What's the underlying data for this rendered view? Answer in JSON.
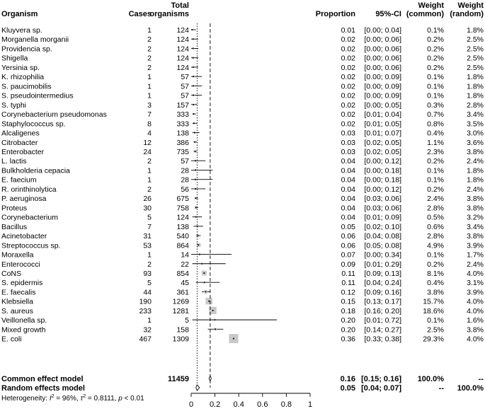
{
  "chart_data": {
    "type": "forest",
    "headers": {
      "organism": "Organism",
      "cases": "Cases",
      "total_line1": "Total",
      "total_line2": "organisms",
      "proportion": "Proportion",
      "ci": "95%-CI",
      "weight_common_line1": "Weight",
      "weight_common_line2": "(common)",
      "weight_random_line1": "Weight",
      "weight_random_line2": "(random)"
    },
    "studies": [
      {
        "organism": "Kluyvera sp.",
        "cases": "1",
        "total": "124",
        "proportion": "0.01",
        "ci": "[0.00; 0.04]",
        "w_common": "0.1%",
        "w_random": "1.8%",
        "est": 0.008,
        "lo": 0.0,
        "hi": 0.04
      },
      {
        "organism": "Morganella morganii",
        "cases": "2",
        "total": "124",
        "proportion": "0.02",
        "ci": "[0.00; 0.06]",
        "w_common": "0.2%",
        "w_random": "2.5%",
        "est": 0.016,
        "lo": 0.0,
        "hi": 0.06
      },
      {
        "organism": "Providencia sp.",
        "cases": "2",
        "total": "124",
        "proportion": "0.02",
        "ci": "[0.00; 0.06]",
        "w_common": "0.2%",
        "w_random": "2.5%",
        "est": 0.016,
        "lo": 0.0,
        "hi": 0.06
      },
      {
        "organism": "Shigella",
        "cases": "2",
        "total": "124",
        "proportion": "0.02",
        "ci": "[0.00; 0.06]",
        "w_common": "0.2%",
        "w_random": "2.5%",
        "est": 0.016,
        "lo": 0.0,
        "hi": 0.06
      },
      {
        "organism": "Yersinia sp.",
        "cases": "2",
        "total": "124",
        "proportion": "0.02",
        "ci": "[0.00; 0.06]",
        "w_common": "0.2%",
        "w_random": "2.5%",
        "est": 0.016,
        "lo": 0.0,
        "hi": 0.06
      },
      {
        "organism": "K. rhizophilia",
        "cases": "1",
        "total": "57",
        "proportion": "0.02",
        "ci": "[0.00; 0.09]",
        "w_common": "0.1%",
        "w_random": "1.8%",
        "est": 0.018,
        "lo": 0.0,
        "hi": 0.09
      },
      {
        "organism": "S. paucimobilis",
        "cases": "1",
        "total": "57",
        "proportion": "0.02",
        "ci": "[0.00; 0.09]",
        "w_common": "0.1%",
        "w_random": "1.8%",
        "est": 0.018,
        "lo": 0.0,
        "hi": 0.09
      },
      {
        "organism": "S. pseudointermedius",
        "cases": "1",
        "total": "57",
        "proportion": "0.02",
        "ci": "[0.00; 0.09]",
        "w_common": "0.1%",
        "w_random": "1.8%",
        "est": 0.018,
        "lo": 0.0,
        "hi": 0.09
      },
      {
        "organism": "S. typhi",
        "cases": "3",
        "total": "157",
        "proportion": "0.02",
        "ci": "[0.00; 0.05]",
        "w_common": "0.3%",
        "w_random": "2.8%",
        "est": 0.019,
        "lo": 0.0,
        "hi": 0.05
      },
      {
        "organism": "Corynebacterium pseudomonas",
        "cases": "7",
        "total": "333",
        "proportion": "0.02",
        "ci": "[0.01; 0.04]",
        "w_common": "0.7%",
        "w_random": "3.4%",
        "est": 0.021,
        "lo": 0.01,
        "hi": 0.04
      },
      {
        "organism": "Staphylococcus sp.",
        "cases": "8",
        "total": "333",
        "proportion": "0.02",
        "ci": "[0.01; 0.05]",
        "w_common": "0.8%",
        "w_random": "3.5%",
        "est": 0.024,
        "lo": 0.01,
        "hi": 0.05
      },
      {
        "organism": "Alcaligenes",
        "cases": "4",
        "total": "138",
        "proportion": "0.03",
        "ci": "[0.01; 0.07]",
        "w_common": "0.4%",
        "w_random": "3.0%",
        "est": 0.029,
        "lo": 0.01,
        "hi": 0.07
      },
      {
        "organism": "Citrobacter",
        "cases": "12",
        "total": "386",
        "proportion": "0.03",
        "ci": "[0.02; 0.05]",
        "w_common": "1.1%",
        "w_random": "3.6%",
        "est": 0.031,
        "lo": 0.02,
        "hi": 0.05
      },
      {
        "organism": "Enterobacter",
        "cases": "24",
        "total": "735",
        "proportion": "0.03",
        "ci": "[0.02; 0.05]",
        "w_common": "2.3%",
        "w_random": "3.8%",
        "est": 0.033,
        "lo": 0.02,
        "hi": 0.05
      },
      {
        "organism": "L. lactis",
        "cases": "2",
        "total": "57",
        "proportion": "0.04",
        "ci": "[0.00; 0.12]",
        "w_common": "0.2%",
        "w_random": "2.4%",
        "est": 0.035,
        "lo": 0.0,
        "hi": 0.12
      },
      {
        "organism": "Bulkholderia cepacia",
        "cases": "1",
        "total": "28",
        "proportion": "0.04",
        "ci": "[0.00; 0.18]",
        "w_common": "0.1%",
        "w_random": "1.8%",
        "est": 0.036,
        "lo": 0.0,
        "hi": 0.18
      },
      {
        "organism": "E. faecium",
        "cases": "1",
        "total": "28",
        "proportion": "0.04",
        "ci": "[0.00; 0.18]",
        "w_common": "0.1%",
        "w_random": "1.8%",
        "est": 0.036,
        "lo": 0.0,
        "hi": 0.18
      },
      {
        "organism": "R. orinthinolytica",
        "cases": "2",
        "total": "56",
        "proportion": "0.04",
        "ci": "[0.00; 0.12]",
        "w_common": "0.2%",
        "w_random": "2.4%",
        "est": 0.036,
        "lo": 0.0,
        "hi": 0.12
      },
      {
        "organism": "P. aeruginosa",
        "cases": "26",
        "total": "675",
        "proportion": "0.04",
        "ci": "[0.03; 0.06]",
        "w_common": "2.4%",
        "w_random": "3.8%",
        "est": 0.039,
        "lo": 0.03,
        "hi": 0.06
      },
      {
        "organism": "Proteus",
        "cases": "30",
        "total": "758",
        "proportion": "0.04",
        "ci": "[0.03; 0.06]",
        "w_common": "2.8%",
        "w_random": "3.8%",
        "est": 0.04,
        "lo": 0.03,
        "hi": 0.06
      },
      {
        "organism": "Corynebacterium",
        "cases": "5",
        "total": "124",
        "proportion": "0.04",
        "ci": "[0.01; 0.09]",
        "w_common": "0.5%",
        "w_random": "3.2%",
        "est": 0.04,
        "lo": 0.01,
        "hi": 0.09
      },
      {
        "organism": "Bacillus",
        "cases": "7",
        "total": "138",
        "proportion": "0.05",
        "ci": "[0.02; 0.10]",
        "w_common": "0.6%",
        "w_random": "3.4%",
        "est": 0.051,
        "lo": 0.02,
        "hi": 0.1
      },
      {
        "organism": "Acinetobacter",
        "cases": "31",
        "total": "540",
        "proportion": "0.06",
        "ci": "[0.04; 0.08]",
        "w_common": "2.8%",
        "w_random": "3.8%",
        "est": 0.057,
        "lo": 0.04,
        "hi": 0.08
      },
      {
        "organism": "Streptococcus sp.",
        "cases": "53",
        "total": "864",
        "proportion": "0.06",
        "ci": "[0.05; 0.08]",
        "w_common": "4.9%",
        "w_random": "3.9%",
        "est": 0.061,
        "lo": 0.05,
        "hi": 0.08
      },
      {
        "organism": "Moraxella",
        "cases": "1",
        "total": "14",
        "proportion": "0.07",
        "ci": "[0.00; 0.34]",
        "w_common": "0.1%",
        "w_random": "1.7%",
        "est": 0.071,
        "lo": 0.0,
        "hi": 0.34
      },
      {
        "organism": "Enterococci",
        "cases": "2",
        "total": "22",
        "proportion": "0.09",
        "ci": "[0.01; 0.29]",
        "w_common": "0.2%",
        "w_random": "2.4%",
        "est": 0.091,
        "lo": 0.01,
        "hi": 0.29
      },
      {
        "organism": "CoNS",
        "cases": "93",
        "total": "854",
        "proportion": "0.11",
        "ci": "[0.09; 0.13]",
        "w_common": "8.1%",
        "w_random": "4.0%",
        "est": 0.109,
        "lo": 0.09,
        "hi": 0.13
      },
      {
        "organism": "S. epidermis",
        "cases": "5",
        "total": "45",
        "proportion": "0.11",
        "ci": "[0.04; 0.24]",
        "w_common": "0.4%",
        "w_random": "3.1%",
        "est": 0.111,
        "lo": 0.04,
        "hi": 0.24
      },
      {
        "organism": "E. faecalis",
        "cases": "44",
        "total": "361",
        "proportion": "0.12",
        "ci": "[0.09; 0.16]",
        "w_common": "3.8%",
        "w_random": "3.9%",
        "est": 0.122,
        "lo": 0.09,
        "hi": 0.16
      },
      {
        "organism": "Klebsiella",
        "cases": "190",
        "total": "1269",
        "proportion": "0.15",
        "ci": "[0.13; 0.17]",
        "w_common": "15.7%",
        "w_random": "4.0%",
        "est": 0.15,
        "lo": 0.13,
        "hi": 0.17
      },
      {
        "organism": "S. aureus",
        "cases": "233",
        "total": "1281",
        "proportion": "0.18",
        "ci": "[0.16; 0.20]",
        "w_common": "18.6%",
        "w_random": "4.0%",
        "est": 0.182,
        "lo": 0.16,
        "hi": 0.2
      },
      {
        "organism": "Veillonella sp.",
        "cases": "1",
        "total": "5",
        "proportion": "0.20",
        "ci": "[0.01; 0.72]",
        "w_common": "0.1%",
        "w_random": "1.6%",
        "est": 0.2,
        "lo": 0.01,
        "hi": 0.72
      },
      {
        "organism": "Mixed growth",
        "cases": "32",
        "total": "158",
        "proportion": "0.20",
        "ci": "[0.14; 0.27]",
        "w_common": "2.5%",
        "w_random": "3.8%",
        "est": 0.203,
        "lo": 0.14,
        "hi": 0.27
      },
      {
        "organism": "E. coli",
        "cases": "467",
        "total": "1309",
        "proportion": "0.36",
        "ci": "[0.33; 0.38]",
        "w_common": "29.3%",
        "w_random": "4.0%",
        "est": 0.357,
        "lo": 0.33,
        "hi": 0.38
      }
    ],
    "common": {
      "label": "Common effect model",
      "total": "11459",
      "proportion": "0.16",
      "ci": "[0.15; 0.16]",
      "w_common": "100.0%",
      "w_random": "--",
      "est": 0.16,
      "lo": 0.15,
      "hi": 0.16
    },
    "random": {
      "label": "Random effects model",
      "proportion": "0.05",
      "ci": "[0.04; 0.07]",
      "w_common": "--",
      "w_random": "100.0%",
      "est": 0.05,
      "lo": 0.04,
      "hi": 0.07
    },
    "heterogeneity": {
      "prefix": "Heterogeneity: ",
      "i2_symbol": "I",
      "i2_rest": " = 96%, ",
      "tau_symbol": "τ",
      "tau_rest": " = 0.8111, ",
      "p_symbol": "p",
      "p_rest": " < 0.01"
    },
    "x_ticks": [
      "0",
      "0.2",
      "0.4",
      "0.6",
      "0.8",
      "1"
    ],
    "x_tick_values": [
      0,
      0.2,
      0.4,
      0.6,
      0.8,
      1.0
    ],
    "xlim": [
      0,
      1
    ],
    "colors": {
      "square": "#c8c8c8",
      "line": "#000000"
    }
  }
}
